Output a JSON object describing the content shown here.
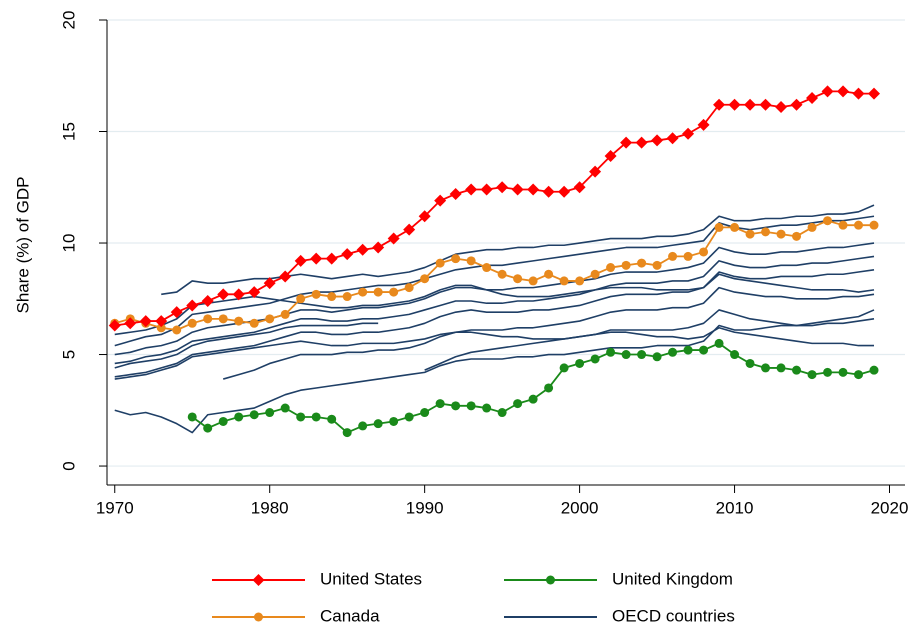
{
  "chart_data": {
    "type": "line",
    "y_label": "Share (%) of GDP",
    "x": [
      1970,
      1971,
      1972,
      1973,
      1974,
      1975,
      1976,
      1977,
      1978,
      1979,
      1980,
      1981,
      1982,
      1983,
      1984,
      1985,
      1986,
      1987,
      1988,
      1989,
      1990,
      1991,
      1992,
      1993,
      1994,
      1995,
      1996,
      1997,
      1998,
      1999,
      2000,
      2001,
      2002,
      2003,
      2004,
      2005,
      2006,
      2007,
      2008,
      2009,
      2010,
      2011,
      2012,
      2013,
      2014,
      2015,
      2016,
      2017,
      2018,
      2019
    ],
    "xlim": [
      1969.5,
      2021
    ],
    "xticks": [
      1970,
      1980,
      1990,
      2000,
      2010,
      2020
    ],
    "ylim": [
      -0.85,
      20
    ],
    "yticks": [
      0,
      5,
      10,
      15,
      20
    ],
    "grid": true,
    "legend": "bottom",
    "series": [
      {
        "name": "United States",
        "color": "#ff0000",
        "marker": "diamond",
        "values": [
          6.3,
          6.4,
          6.5,
          6.5,
          6.9,
          7.2,
          7.4,
          7.7,
          7.7,
          7.8,
          8.2,
          8.5,
          9.2,
          9.3,
          9.3,
          9.5,
          9.7,
          9.8,
          10.2,
          10.6,
          11.2,
          11.9,
          12.2,
          12.4,
          12.4,
          12.5,
          12.4,
          12.4,
          12.3,
          12.3,
          12.5,
          13.2,
          13.9,
          14.5,
          14.5,
          14.6,
          14.7,
          14.9,
          15.3,
          16.2,
          16.2,
          16.2,
          16.2,
          16.1,
          16.2,
          16.5,
          16.8,
          16.8,
          16.7,
          16.7
        ]
      },
      {
        "name": "Canada",
        "color": "#e8891d",
        "marker": "circle",
        "values": [
          6.4,
          6.6,
          6.4,
          6.2,
          6.1,
          6.4,
          6.6,
          6.6,
          6.5,
          6.4,
          6.6,
          6.8,
          7.5,
          7.7,
          7.6,
          7.6,
          7.8,
          7.8,
          7.8,
          8.0,
          8.4,
          9.1,
          9.3,
          9.2,
          8.9,
          8.6,
          8.4,
          8.3,
          8.6,
          8.3,
          8.3,
          8.6,
          8.9,
          9.0,
          9.1,
          9.0,
          9.4,
          9.4,
          9.6,
          10.7,
          10.7,
          10.4,
          10.5,
          10.4,
          10.3,
          10.7,
          11.0,
          10.8,
          10.8,
          10.8
        ]
      },
      {
        "name": "United Kingdom",
        "color": "#1a8a1a",
        "marker": "circle",
        "values": [
          null,
          null,
          null,
          null,
          null,
          2.2,
          1.7,
          2.0,
          2.2,
          2.3,
          2.4,
          2.6,
          2.2,
          2.2,
          2.1,
          1.5,
          1.8,
          1.9,
          2.0,
          2.2,
          2.4,
          2.8,
          2.7,
          2.7,
          2.6,
          2.4,
          2.8,
          3.0,
          3.5,
          4.4,
          4.6,
          4.8,
          5.1,
          5.0,
          5.0,
          4.9,
          5.1,
          5.2,
          5.2,
          5.5,
          5.0,
          4.6,
          4.4,
          4.4,
          4.3,
          4.1,
          4.2,
          4.2,
          4.1,
          4.3
        ]
      },
      {
        "name": "OECD countries",
        "color": "#1f3f66",
        "lines": [
          [
            null,
            null,
            null,
            7.7,
            7.8,
            8.3,
            8.2,
            8.2,
            8.3,
            8.4,
            8.4,
            8.5,
            8.6,
            8.5,
            8.4,
            8.5,
            8.6,
            8.5,
            8.6,
            8.7,
            8.9,
            9.2,
            9.5,
            9.6,
            9.7,
            9.7,
            9.8,
            9.8,
            9.9,
            9.9,
            10.0,
            10.1,
            10.2,
            10.2,
            10.2,
            10.3,
            10.3,
            10.4,
            10.6,
            11.2,
            11.0,
            11.0,
            11.1,
            11.1,
            11.2,
            11.2,
            11.3,
            11.3,
            11.4,
            11.7
          ],
          [
            5.4,
            5.6,
            5.8,
            5.9,
            6.2,
            6.8,
            6.9,
            7.0,
            7.1,
            7.2,
            7.3,
            7.5,
            7.7,
            7.8,
            7.8,
            7.9,
            8.0,
            8.1,
            8.1,
            8.2,
            8.4,
            8.6,
            8.8,
            8.9,
            9.0,
            9.0,
            9.1,
            9.2,
            9.3,
            9.4,
            9.5,
            9.6,
            9.7,
            9.8,
            9.8,
            9.8,
            9.9,
            10.0,
            10.1,
            10.9,
            10.7,
            10.6,
            10.7,
            10.8,
            10.8,
            10.9,
            11.0,
            11.0,
            11.1,
            11.2
          ],
          [
            5.0,
            5.1,
            5.3,
            5.4,
            5.6,
            6.0,
            6.2,
            6.3,
            6.4,
            6.5,
            6.6,
            6.8,
            7.0,
            7.0,
            6.9,
            7.0,
            7.1,
            7.1,
            7.2,
            7.3,
            7.5,
            7.8,
            8.0,
            8.0,
            7.9,
            7.9,
            8.0,
            8.0,
            8.1,
            8.2,
            8.3,
            8.4,
            8.6,
            8.7,
            8.7,
            8.7,
            8.8,
            8.9,
            9.1,
            9.8,
            9.6,
            9.5,
            9.5,
            9.6,
            9.6,
            9.7,
            9.8,
            9.8,
            9.9,
            10.0
          ],
          [
            4.6,
            4.7,
            4.9,
            5.0,
            5.2,
            5.6,
            5.7,
            5.8,
            5.9,
            6.0,
            6.2,
            6.4,
            6.6,
            6.6,
            6.5,
            6.5,
            6.6,
            6.6,
            6.7,
            6.8,
            7.0,
            7.2,
            7.4,
            7.4,
            7.3,
            7.3,
            7.4,
            7.4,
            7.5,
            7.6,
            7.7,
            7.9,
            8.1,
            8.2,
            8.2,
            8.2,
            8.3,
            8.3,
            8.5,
            9.2,
            9.0,
            8.9,
            8.9,
            9.0,
            9.0,
            9.1,
            9.1,
            9.2,
            9.3,
            9.4
          ],
          [
            4.0,
            4.1,
            4.2,
            4.4,
            4.6,
            5.0,
            5.1,
            5.2,
            5.3,
            5.4,
            5.6,
            5.8,
            6.0,
            6.0,
            5.9,
            5.9,
            6.0,
            6.0,
            6.1,
            6.2,
            6.4,
            6.7,
            6.9,
            7.0,
            6.9,
            6.9,
            6.9,
            7.0,
            7.0,
            7.1,
            7.2,
            7.4,
            7.6,
            7.7,
            7.7,
            7.7,
            7.8,
            7.8,
            8.0,
            8.7,
            8.5,
            8.4,
            8.4,
            8.5,
            8.5,
            8.5,
            8.6,
            8.6,
            8.7,
            8.8
          ],
          [
            null,
            null,
            null,
            null,
            null,
            null,
            null,
            3.9,
            4.1,
            4.3,
            4.6,
            4.8,
            5.0,
            5.0,
            5.0,
            5.1,
            5.1,
            5.2,
            5.2,
            5.3,
            5.5,
            5.8,
            6.0,
            6.1,
            6.1,
            6.1,
            6.2,
            6.2,
            6.3,
            6.4,
            6.5,
            6.7,
            6.9,
            7.0,
            7.0,
            7.0,
            7.1,
            7.1,
            7.3,
            8.0,
            7.8,
            7.7,
            7.6,
            7.6,
            7.5,
            7.5,
            7.5,
            7.6,
            7.6,
            7.7
          ],
          [
            2.5,
            2.3,
            2.4,
            2.2,
            1.9,
            1.5,
            2.3,
            2.4,
            2.5,
            2.6,
            2.9,
            3.2,
            3.4,
            3.5,
            3.6,
            3.7,
            3.8,
            3.9,
            4.0,
            4.1,
            4.2,
            4.5,
            4.7,
            4.8,
            4.8,
            4.8,
            4.9,
            4.9,
            5.0,
            5.0,
            5.1,
            5.2,
            5.3,
            5.3,
            5.3,
            5.4,
            5.4,
            5.4,
            5.6,
            6.3,
            6.1,
            6.1,
            6.2,
            6.3,
            6.3,
            6.4,
            6.5,
            6.6,
            6.7,
            7.0
          ],
          [
            4.4,
            4.6,
            4.7,
            4.8,
            5.0,
            5.4,
            5.6,
            5.7,
            5.8,
            5.9,
            6.0,
            6.2,
            6.3,
            6.3,
            6.3,
            6.3,
            6.4,
            6.4,
            null,
            null,
            4.3,
            4.6,
            4.9,
            5.1,
            5.2,
            5.3,
            5.4,
            5.5,
            5.6,
            5.7,
            5.8,
            5.9,
            6.1,
            6.1,
            6.1,
            6.1,
            6.1,
            6.2,
            6.4,
            7.0,
            6.8,
            6.6,
            6.5,
            6.4,
            6.3,
            6.3,
            6.4,
            6.4,
            6.5,
            6.6
          ],
          [
            5.9,
            6.0,
            6.1,
            6.3,
            6.6,
            7.2,
            7.3,
            7.4,
            7.5,
            7.6,
            7.5,
            7.4,
            7.3,
            7.2,
            7.1,
            7.1,
            7.2,
            7.2,
            7.3,
            7.4,
            7.6,
            7.9,
            8.1,
            8.1,
            7.9,
            7.7,
            7.6,
            7.6,
            7.6,
            7.7,
            7.8,
            7.9,
            8.0,
            8.0,
            8.0,
            7.9,
            7.9,
            7.9,
            8.0,
            8.6,
            8.4,
            8.3,
            8.2,
            8.1,
            8.0,
            7.9,
            7.9,
            7.9,
            7.8,
            7.9
          ],
          [
            3.9,
            4.0,
            4.1,
            4.3,
            4.5,
            4.9,
            5.0,
            5.1,
            5.2,
            5.3,
            5.4,
            5.5,
            5.6,
            5.5,
            5.4,
            5.4,
            5.5,
            5.5,
            5.5,
            5.6,
            5.7,
            5.9,
            6.0,
            6.0,
            5.9,
            5.8,
            5.8,
            5.7,
            5.7,
            5.7,
            5.8,
            5.9,
            6.0,
            6.0,
            5.9,
            5.8,
            5.8,
            5.7,
            5.8,
            6.2,
            6.0,
            5.9,
            5.8,
            5.7,
            5.6,
            5.5,
            5.5,
            5.5,
            5.4,
            5.4
          ]
        ]
      }
    ]
  }
}
